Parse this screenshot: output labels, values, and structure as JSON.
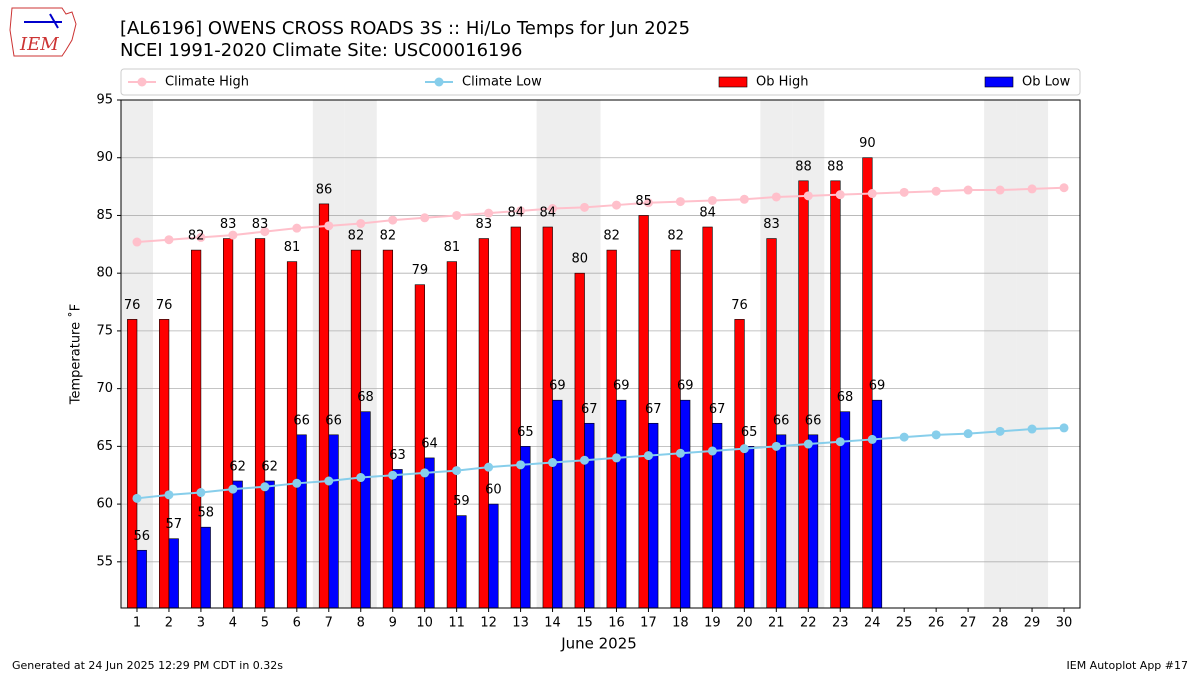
{
  "chart_data": {
    "type": "bar",
    "logo_text": "IEM",
    "title": "[AL6196] OWENS CROSS ROADS 3S :: Hi/Lo Temps for Jun 2025",
    "subtitle": "NCEI 1991-2020 Climate Site: USC00016196",
    "x_label": "June 2025",
    "y_label": "Temperature ˚F",
    "footer_left": "Generated at 24 Jun 2025 12:29 PM CDT in 0.32s",
    "footer_right": "IEM Autoplot App #17",
    "x": [
      1,
      2,
      3,
      4,
      5,
      6,
      7,
      8,
      9,
      10,
      11,
      12,
      13,
      14,
      15,
      16,
      17,
      18,
      19,
      20,
      21,
      22,
      23,
      24,
      25,
      26,
      27,
      28,
      29,
      30
    ],
    "xlim": [
      0.5,
      30.5
    ],
    "xticks": [
      1,
      2,
      3,
      4,
      5,
      6,
      7,
      8,
      9,
      10,
      11,
      12,
      13,
      14,
      15,
      16,
      17,
      18,
      19,
      20,
      21,
      22,
      23,
      24,
      25,
      26,
      27,
      28,
      29,
      30
    ],
    "ylim": [
      51,
      95
    ],
    "yticks": [
      55,
      60,
      65,
      70,
      75,
      80,
      85,
      90,
      95
    ],
    "grid": true,
    "shaded_days": [
      1,
      7,
      8,
      14,
      15,
      21,
      22,
      28,
      29
    ],
    "shade_color": "#eeeeee",
    "series": [
      {
        "name": "Climate High",
        "kind": "line",
        "color": "#ffc0cb",
        "values": [
          82.7,
          82.9,
          83.1,
          83.3,
          83.6,
          83.9,
          84.1,
          84.3,
          84.6,
          84.8,
          85.0,
          85.2,
          85.4,
          85.6,
          85.7,
          85.9,
          86.1,
          86.2,
          86.3,
          86.4,
          86.6,
          86.7,
          86.8,
          86.9,
          87.0,
          87.1,
          87.2,
          87.2,
          87.3,
          87.4
        ]
      },
      {
        "name": "Climate Low",
        "kind": "line",
        "color": "#87ceeb",
        "values": [
          60.5,
          60.8,
          61.0,
          61.3,
          61.5,
          61.8,
          62.0,
          62.3,
          62.5,
          62.7,
          62.9,
          63.2,
          63.4,
          63.6,
          63.8,
          64.0,
          64.2,
          64.4,
          64.6,
          64.8,
          65.0,
          65.2,
          65.4,
          65.6,
          65.8,
          66.0,
          66.1,
          66.3,
          66.5,
          66.6
        ]
      },
      {
        "name": "Ob High",
        "kind": "bar",
        "color": "#ff0000",
        "values": [
          76,
          76,
          82,
          83,
          83,
          81,
          86,
          82,
          82,
          79,
          81,
          83,
          84,
          84,
          80,
          82,
          85,
          82,
          84,
          76,
          83,
          88,
          88,
          90,
          null,
          null,
          null,
          null,
          null,
          null
        ]
      },
      {
        "name": "Ob Low",
        "kind": "bar",
        "color": "#0000ff",
        "values": [
          56,
          57,
          58,
          62,
          62,
          66,
          66,
          68,
          63,
          64,
          59,
          60,
          65,
          69,
          67,
          69,
          67,
          69,
          67,
          65,
          66,
          66,
          68,
          69,
          null,
          null,
          null,
          null,
          null,
          null
        ]
      }
    ]
  }
}
